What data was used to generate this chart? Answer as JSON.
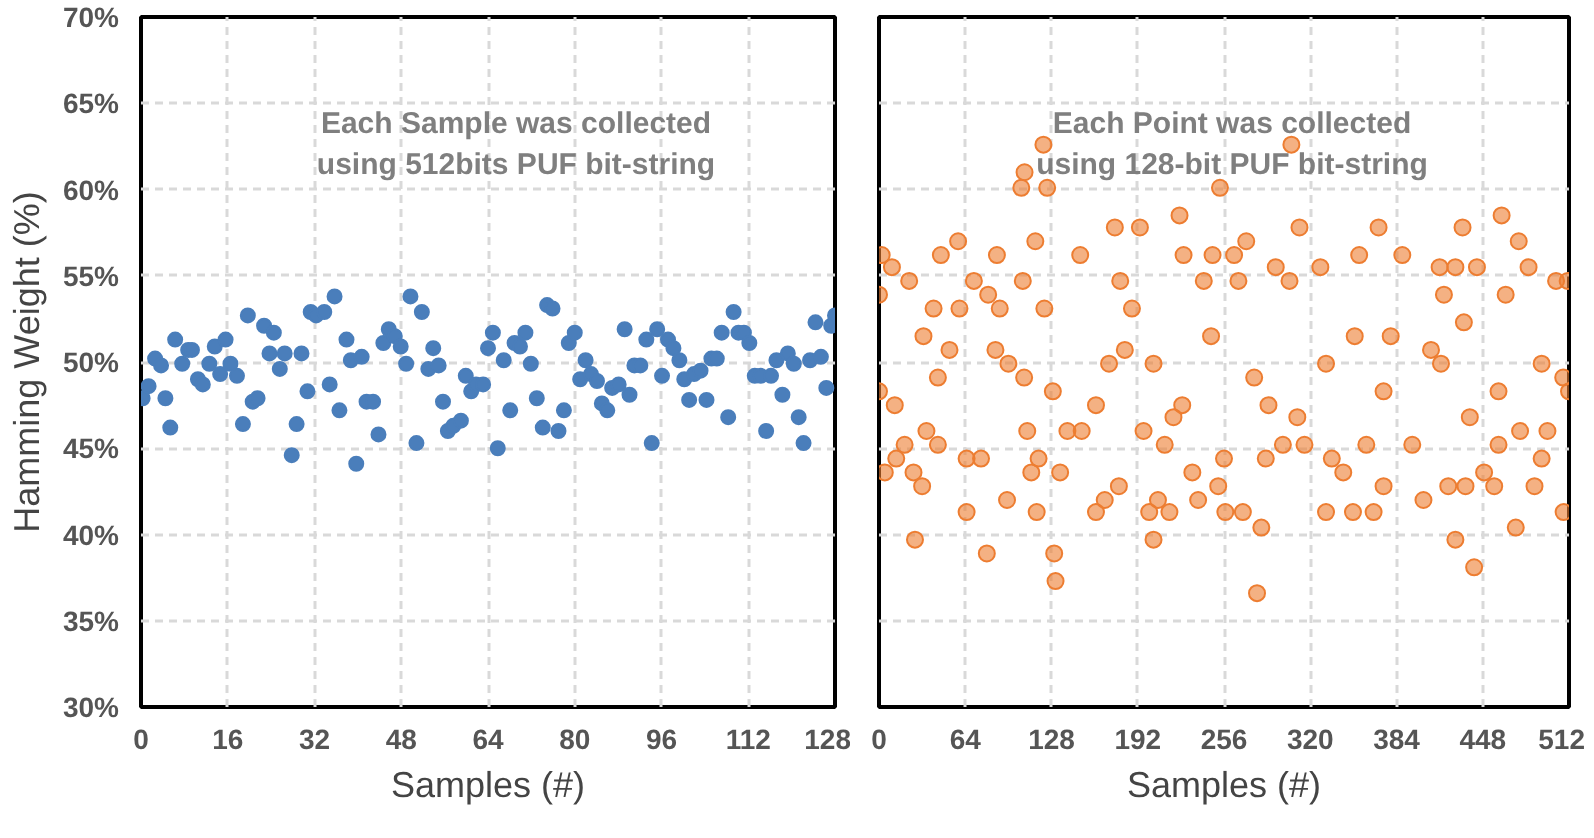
{
  "chart_data": [
    {
      "type": "scatter",
      "xlabel": "Samples (#)",
      "ylabel": "Hamming Weight (%)",
      "annotations": [
        "Each Sample was collected using 512bits PUF bit-string"
      ],
      "xlim": [
        0,
        128
      ],
      "ylim": [
        30,
        70
      ],
      "xticks": [
        0,
        16,
        32,
        48,
        64,
        80,
        96,
        112,
        128
      ],
      "yticks": [
        {
          "value": 30,
          "label": "30%"
        },
        {
          "value": 35,
          "label": "35%"
        },
        {
          "value": 40,
          "label": "40%"
        },
        {
          "value": 45,
          "label": "45%"
        },
        {
          "value": 50,
          "label": "50%"
        },
        {
          "value": 55,
          "label": "55%"
        },
        {
          "value": 60,
          "label": "60%"
        },
        {
          "value": 65,
          "label": "65%"
        },
        {
          "value": 70,
          "label": "70%"
        }
      ],
      "grid": true,
      "marker": "circle",
      "series": [
        {
          "color": "#4a7ebb",
          "x": [
            0.3,
            1.4,
            2.6,
            3.7,
            4.5,
            5.4,
            6.3,
            7.6,
            8.7,
            9.4,
            10.5,
            11.4,
            12.6,
            13.6,
            14.6,
            15.6,
            16.5,
            17.7,
            18.8,
            19.7,
            20.6,
            21.5,
            22.7,
            23.7,
            24.5,
            25.6,
            26.5,
            27.8,
            28.7,
            29.6,
            30.7,
            31.3,
            32.3,
            33.8,
            34.8,
            35.7,
            36.6,
            37.9,
            38.7,
            39.7,
            40.7,
            41.6,
            42.8,
            43.8,
            44.7,
            45.7,
            46.8,
            47.9,
            48.9,
            49.7,
            50.8,
            51.8,
            53.0,
            53.9,
            54.9,
            55.7,
            56.6,
            57.6,
            59.0,
            59.9,
            60.9,
            61.8,
            63.1,
            64.0,
            64.9,
            65.8,
            66.9,
            68.1,
            68.9,
            69.9,
            70.9,
            71.9,
            73.0,
            74.1,
            74.9,
            75.9,
            77.0,
            78.0,
            78.9,
            80.0,
            81.0,
            82.0,
            83.0,
            84.1,
            85.0,
            86.0,
            86.9,
            88.1,
            89.2,
            90.1,
            91.0,
            92.1,
            93.2,
            94.2,
            95.2,
            96.1,
            97.2,
            98.2,
            99.3,
            100.2,
            101.1,
            102.0,
            103.2,
            104.3,
            105.2,
            106.2,
            107.1,
            108.3,
            109.3,
            110.2,
            111.2,
            112.2,
            113.2,
            114.3,
            115.3,
            116.2,
            117.2,
            118.3,
            119.3,
            120.4,
            121.3,
            122.2,
            123.4,
            124.4,
            125.4,
            126.4,
            127.3,
            128
          ],
          "values": [
            47.9,
            48.6,
            50.2,
            49.8,
            47.9,
            46.2,
            51.3,
            49.9,
            50.7,
            50.7,
            49.0,
            48.7,
            49.9,
            50.9,
            49.3,
            51.3,
            49.9,
            49.2,
            46.4,
            52.7,
            47.7,
            47.9,
            52.1,
            50.5,
            51.7,
            49.6,
            50.5,
            44.6,
            46.4,
            50.5,
            48.3,
            52.9,
            52.7,
            52.9,
            48.7,
            53.8,
            47.2,
            51.3,
            50.1,
            44.1,
            50.3,
            47.7,
            47.7,
            45.8,
            51.1,
            51.9,
            51.5,
            50.9,
            49.9,
            53.8,
            45.3,
            52.9,
            49.6,
            50.8,
            49.8,
            47.7,
            46.0,
            46.3,
            46.6,
            49.2,
            48.3,
            48.7,
            48.7,
            50.8,
            51.7,
            45.0,
            50.1,
            47.2,
            51.1,
            50.9,
            51.7,
            49.9,
            47.9,
            46.2,
            53.3,
            53.1,
            46.0,
            47.2,
            51.1,
            51.7,
            49.0,
            50.1,
            49.3,
            48.9,
            47.6,
            47.2,
            48.5,
            48.7,
            51.9,
            48.1,
            49.8,
            49.8,
            51.3,
            45.3,
            51.9,
            49.2,
            51.3,
            50.8,
            50.1,
            49.0,
            47.8,
            49.3,
            49.5,
            47.8,
            50.2,
            50.2,
            51.7,
            46.8,
            52.9,
            51.7,
            51.7,
            51.1,
            49.2,
            49.2,
            46.0,
            49.2,
            50.1,
            48.1,
            50.5,
            49.9,
            46.8,
            45.3,
            50.1,
            52.3,
            50.3,
            48.5,
            52.1,
            52.7
          ]
        }
      ]
    },
    {
      "type": "scatter",
      "xlabel": "Samples (#)",
      "annotations": [
        "Each Point was collected using 128-bit PUF bit-string"
      ],
      "xlim": [
        0,
        512
      ],
      "ylim": [
        30,
        70
      ],
      "xticks": [
        0,
        64,
        128,
        192,
        256,
        320,
        384,
        448,
        512
      ],
      "yticks": [
        30,
        35,
        40,
        45,
        50,
        55,
        60,
        65,
        70
      ],
      "tick_labels": "x",
      "grid": true,
      "marker": "circle",
      "series": [
        {
          "color": "#ed7d31",
          "x": [
            122,
            306,
            108,
            105.6,
            124.8,
            253,
            223,
            462,
            175,
            193.6,
            312,
            370.7,
            433,
            58.7,
            116,
            474.7,
            272.5,
            26.7,
            80,
            130,
            131,
            203.7,
            280.5,
            283.7,
            427.7,
            441.6,
            472.5,
            508,
            65,
            117,
            2,
            0,
            0,
            4.3,
            9.6,
            12.8,
            19,
            22.4,
            25.6,
            32,
            35.2,
            40.5,
            43.7,
            45.9,
            52.3,
            59.7,
            65,
            70.4,
            75.7,
            81,
            87.5,
            89.6,
            95,
            96,
            106.7,
            110,
            113,
            118.4,
            122.7,
            134.4,
            139.8,
            149.3,
            150.4,
            161,
            167.5,
            170.7,
            178,
            179,
            187.7,
            196.3,
            200.5,
            207,
            212,
            215.5,
            218.5,
            226,
            232.5,
            236.8,
            241,
            247.5,
            251.7,
            256,
            257,
            263.5,
            266.7,
            270,
            278.4,
            287,
            294.4,
            299.7,
            304.6,
            315.7,
            327.5,
            331.7,
            336,
            344.5,
            351.7,
            356.3,
            361.6,
            367,
            374.4,
            379.7,
            388.3,
            395.7,
            404,
            409.6,
            416,
            419.2,
            422.4,
            427.7,
            434,
            435.2,
            443.7,
            449,
            456.5,
            459.7,
            465,
            475.7,
            482,
            486.4,
            491.7,
            496,
            502.4,
            507.7,
            511,
            512,
            11.7,
            43.7,
            86.4,
            129,
            161,
            203.7,
            246.4,
            289,
            331.7,
            374.4,
            417,
            459.7,
            491.7,
            33,
            107.7,
            182.4,
            225,
            310.4,
            353,
            438.4
          ],
          "values": [
            62.6,
            62.6,
            61.0,
            60.1,
            60.1,
            60.1,
            58.5,
            58.5,
            57.8,
            57.8,
            57.8,
            57.8,
            57.8,
            57.0,
            57.0,
            57.0,
            57.0,
            39.7,
            38.9,
            38.9,
            37.3,
            39.7,
            36.6,
            40.4,
            39.7,
            38.1,
            40.4,
            41.3,
            41.3,
            41.3,
            56.2,
            53.9,
            48.3,
            43.6,
            55.5,
            44.4,
            45.2,
            54.7,
            43.6,
            42.8,
            46.0,
            53.1,
            45.2,
            56.2,
            50.7,
            53.1,
            44.4,
            54.7,
            44.4,
            53.9,
            56.2,
            53.1,
            42.0,
            49.9,
            54.7,
            46.0,
            43.6,
            44.4,
            53.1,
            43.6,
            46.0,
            56.2,
            46.0,
            41.3,
            42.0,
            49.9,
            42.8,
            54.7,
            53.1,
            46.0,
            41.3,
            42.0,
            45.2,
            41.3,
            46.8,
            56.2,
            43.6,
            42.0,
            54.7,
            56.2,
            42.8,
            44.4,
            41.3,
            56.2,
            54.7,
            41.3,
            49.1,
            44.4,
            55.5,
            45.2,
            54.7,
            45.2,
            55.5,
            41.3,
            44.4,
            43.6,
            41.3,
            56.2,
            45.2,
            41.3,
            42.8,
            51.5,
            56.2,
            45.2,
            42.0,
            50.7,
            55.5,
            53.9,
            42.8,
            55.5,
            52.3,
            42.8,
            55.5,
            43.6,
            42.8,
            45.2,
            53.9,
            46.0,
            55.5,
            42.8,
            44.4,
            46.0,
            54.7,
            49.1,
            54.7,
            48.3,
            47.5,
            49.1,
            50.7,
            48.3,
            47.5,
            49.9,
            51.5,
            47.5,
            49.9,
            48.3,
            49.9,
            48.3,
            49.9,
            51.5,
            49.1,
            50.7,
            47.5,
            46.8,
            51.5,
            46.8
          ]
        }
      ]
    }
  ]
}
